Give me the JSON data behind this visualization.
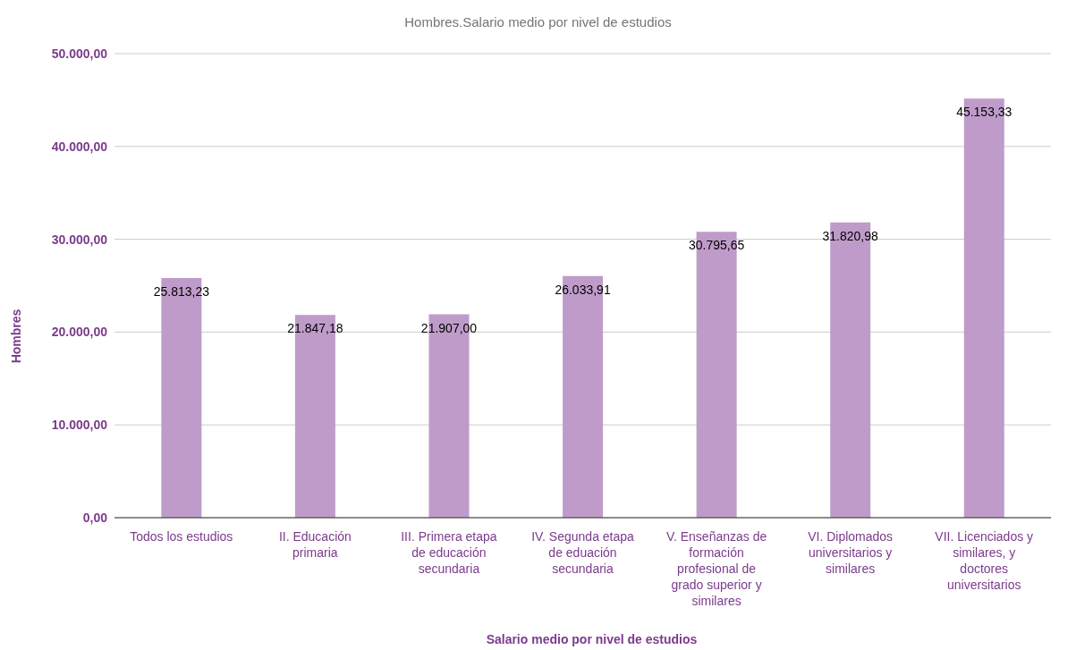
{
  "chart_data": {
    "type": "bar",
    "title": "Hombres.Salario medio por nivel de estudios",
    "xlabel": "Salario medio por nivel de estudios",
    "ylabel": "Hombres",
    "categories": [
      "Todos los estudios",
      "II. Educación primaria",
      "III. Primera etapa de educación secundaria",
      "IV. Segunda etapa de eduación secundaria",
      "V. Enseñanzas de formación profesional de grado superior y similares",
      "VI. Diplomados universitarios y similares",
      "VII. Licenciados y similares, y doctores universitarios"
    ],
    "values": [
      25813.23,
      21847.18,
      21907.0,
      26033.91,
      30795.65,
      31820.98,
      45153.33
    ],
    "value_labels": [
      "25.813,23",
      "21.847,18",
      "21.907,00",
      "26.033,91",
      "30.795,65",
      "31.820,98",
      "45.153,33"
    ],
    "color": "#bf9bca",
    "ylim": [
      0,
      50000
    ],
    "yticks": [
      {
        "value": 0,
        "label": "0,00"
      },
      {
        "value": 10000,
        "label": "10.000,00"
      },
      {
        "value": 20000,
        "label": "20.000,00"
      },
      {
        "value": 30000,
        "label": "30.000,00"
      },
      {
        "value": 40000,
        "label": "40.000,00"
      },
      {
        "value": 50000,
        "label": "50.000,00"
      }
    ],
    "grid": "y",
    "legend": false
  }
}
